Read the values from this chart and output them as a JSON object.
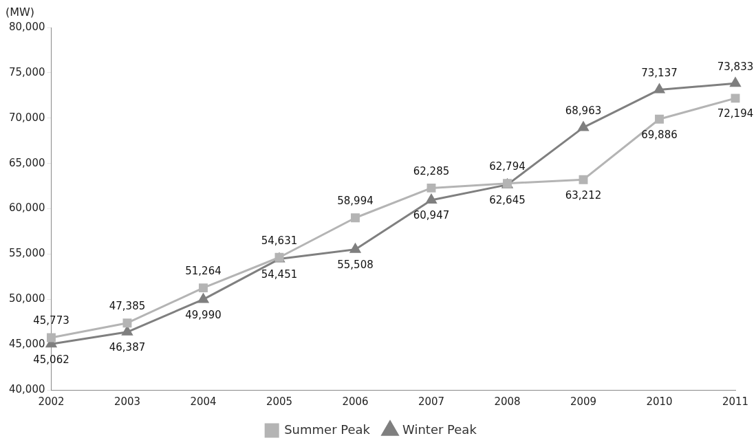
{
  "chart_data": {
    "type": "line",
    "ylabel": "(MW)",
    "categories": [
      "2002",
      "2003",
      "2004",
      "2005",
      "2006",
      "2007",
      "2008",
      "2009",
      "2010",
      "2011"
    ],
    "series": [
      {
        "name": "Summer Peak",
        "color": "#b4b4b4",
        "marker": "square",
        "values": [
          45773,
          47385,
          51264,
          54631,
          58994,
          62285,
          62794,
          63212,
          69886,
          72194
        ],
        "value_labels": [
          "45,773",
          "47,385",
          "51,264",
          "54,631",
          "58,994",
          "62,285",
          "62,794",
          "63,212",
          "69,886",
          "72,194"
        ]
      },
      {
        "name": "Winter Peak",
        "color": "#7f7f7f",
        "marker": "triangle",
        "values": [
          45062,
          46387,
          49990,
          54451,
          55508,
          60947,
          62645,
          68963,
          73137,
          73833
        ],
        "value_labels": [
          "45,062",
          "46,387",
          "49,990",
          "54,451",
          "55,508",
          "60,947",
          "62,645",
          "68,963",
          "73,137",
          "73,833"
        ]
      }
    ],
    "ylim": [
      40000,
      80000
    ],
    "yticks": [
      {
        "value": 40000,
        "label": "40,000"
      },
      {
        "value": 45000,
        "label": "45,000"
      },
      {
        "value": 50000,
        "label": "50,000"
      },
      {
        "value": 55000,
        "label": "55,000"
      },
      {
        "value": 60000,
        "label": "60,000"
      },
      {
        "value": 65000,
        "label": "65,000"
      },
      {
        "value": 70000,
        "label": "70,000"
      },
      {
        "value": 75000,
        "label": "75,000"
      },
      {
        "value": 80000,
        "label": "80,000"
      }
    ],
    "grid": false,
    "legend": "bottom"
  }
}
